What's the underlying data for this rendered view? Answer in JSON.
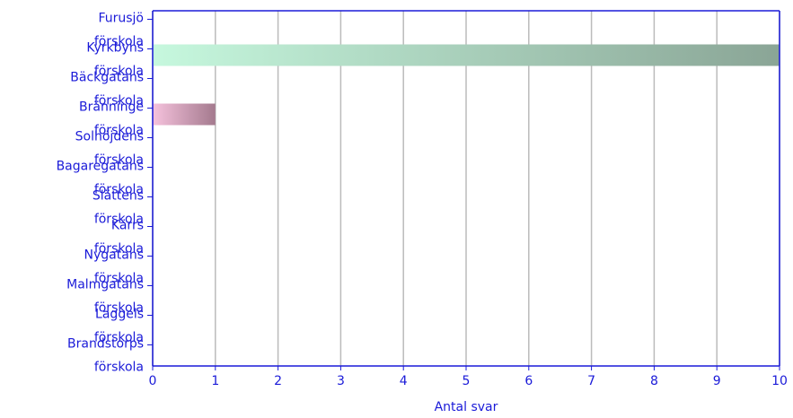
{
  "chart_data": {
    "type": "hbar",
    "categories": [
      "Furusjö förskola",
      "Kyrkbyns förskola",
      "Bäckgatans förskola",
      "Bränninge förskola",
      "Solhöjdens förskola",
      "Bagaregatans förskola",
      "Slättens förskola",
      "Kärrs förskola",
      "Nygatans förskola",
      "Malmgatans förskola",
      "Laggels förskola",
      "Brandstorps förskola"
    ],
    "values": [
      0,
      10,
      0,
      1,
      0,
      0,
      0,
      0,
      0,
      0,
      0,
      0
    ],
    "bar_colors": {
      "1": [
        "#c6f8de",
        "#8aa596"
      ],
      "3": [
        "#f6c2dd",
        "#a47a8e"
      ]
    },
    "xlabel": "Antal svar",
    "xlim": [
      0,
      10
    ],
    "xticks": [
      0,
      1,
      2,
      3,
      4,
      5,
      6,
      7,
      8,
      9,
      10
    ],
    "grid": true
  }
}
